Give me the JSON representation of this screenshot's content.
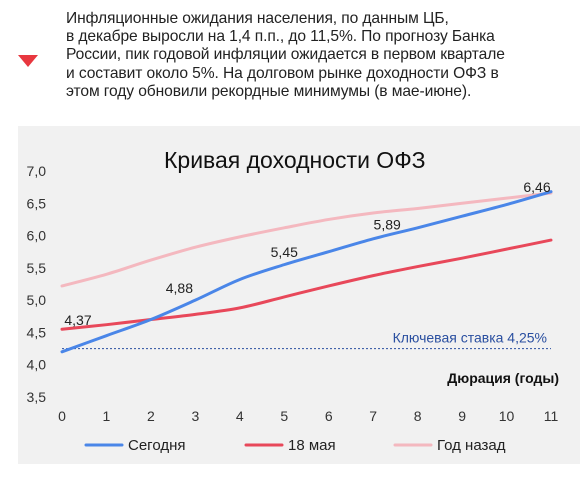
{
  "intro": {
    "lines": [
      "Инфляционные ожидания населения, по данным ЦБ,",
      "в декабре выросли на 1,4 п.п., до 11,5%. По прогнозу Банка",
      "России, пик годовой инфляции ожидается в первом квартале",
      "и составит около 5%. На долговом рынке доходности ОФЗ в",
      "этом году обновили рекордные минимумы (в мае-июне)."
    ],
    "marker_color": "#e8373f"
  },
  "chart_data": {
    "type": "line",
    "title": "Кривая доходности ОФЗ",
    "xlabel": "Дюрация (годы)",
    "ylabel": "",
    "x": [
      0,
      1,
      2,
      3,
      4,
      5,
      6,
      7,
      8,
      9,
      10,
      11
    ],
    "x_ticks": [
      "0",
      "1",
      "2",
      "3",
      "4",
      "5",
      "6",
      "7",
      "8",
      "9",
      "10",
      "11"
    ],
    "y_ticks": [
      "7,0",
      "6,5",
      "6,0",
      "5,5",
      "5,0",
      "4,5",
      "4,0",
      "3,5"
    ],
    "y_tick_values": [
      7.0,
      6.5,
      6.0,
      5.5,
      5.0,
      4.5,
      4.0,
      3.5
    ],
    "xlim": [
      0,
      11
    ],
    "ylim": [
      3.5,
      7.0
    ],
    "grid": false,
    "legend_position": "bottom",
    "series": [
      {
        "name": "Сегодня",
        "color": "#4a86e8",
        "values": [
          4.2,
          4.45,
          4.7,
          5.0,
          5.32,
          5.55,
          5.75,
          5.95,
          6.12,
          6.3,
          6.48,
          6.68
        ]
      },
      {
        "name": "18 мая",
        "color": "#e8485a",
        "values": [
          4.55,
          4.62,
          4.7,
          4.78,
          4.88,
          5.05,
          5.22,
          5.38,
          5.52,
          5.65,
          5.79,
          5.93
        ]
      },
      {
        "name": "Год назад",
        "color": "#f4b8bf",
        "values": [
          5.22,
          5.4,
          5.62,
          5.82,
          5.98,
          6.12,
          6.25,
          6.35,
          6.42,
          6.5,
          6.58,
          6.66
        ]
      }
    ],
    "data_labels": [
      {
        "x": 0,
        "y": 4.37,
        "text": "4,37"
      },
      {
        "x": 3,
        "y": 4.88,
        "text": "4,88"
      },
      {
        "x": 5,
        "y": 5.45,
        "text": "5,45"
      },
      {
        "x": 7,
        "y": 5.89,
        "text": "5,89"
      },
      {
        "x": 11,
        "y": 6.46,
        "text": "6,46"
      }
    ],
    "reference_line": {
      "y": 4.25,
      "label": "Ключевая ставка 4,25%",
      "color": "#2a4fa0"
    }
  }
}
